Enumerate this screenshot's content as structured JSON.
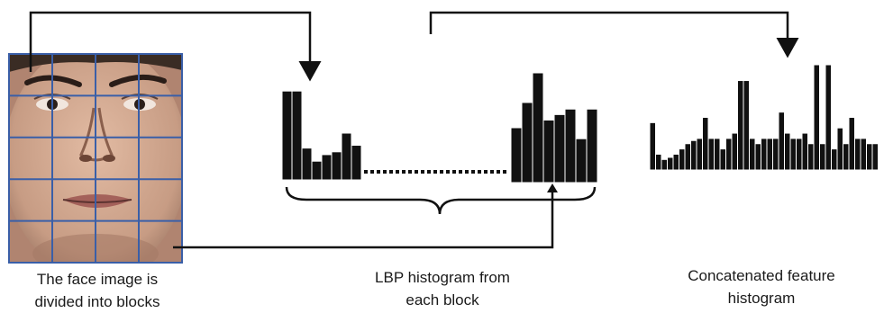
{
  "captions": {
    "face": [
      "The face image is",
      "divided into blocks"
    ],
    "lbp": [
      "LBP histogram from",
      "each block"
    ],
    "concat": [
      "Concatenated feature",
      "histogram"
    ]
  },
  "face_grid": {
    "rows": 5,
    "cols": 4,
    "line_color": "#3a5fa8"
  },
  "colors": {
    "bars": "#111111",
    "arrows": "#111111",
    "skin": "#c9a089",
    "hair": "#3a2c24"
  },
  "histograms": {
    "first_block": [
      0.95,
      0.95,
      0.34,
      0.2,
      0.27,
      0.3,
      0.5,
      0.37
    ],
    "last_block": [
      0.5,
      0.73,
      1.0,
      0.57,
      0.62,
      0.67,
      0.4,
      0.67
    ],
    "concatenated": [
      0.45,
      0.15,
      0.1,
      0.12,
      0.15,
      0.2,
      0.25,
      0.28,
      0.3,
      0.5,
      0.3,
      0.3,
      0.2,
      0.3,
      0.35,
      0.85,
      0.85,
      0.3,
      0.25,
      0.3,
      0.3,
      0.3,
      0.55,
      0.35,
      0.3,
      0.3,
      0.35,
      0.25,
      1.0,
      0.25,
      1.0,
      0.2,
      0.4,
      0.25,
      0.5,
      0.3,
      0.3,
      0.25,
      0.25
    ]
  }
}
